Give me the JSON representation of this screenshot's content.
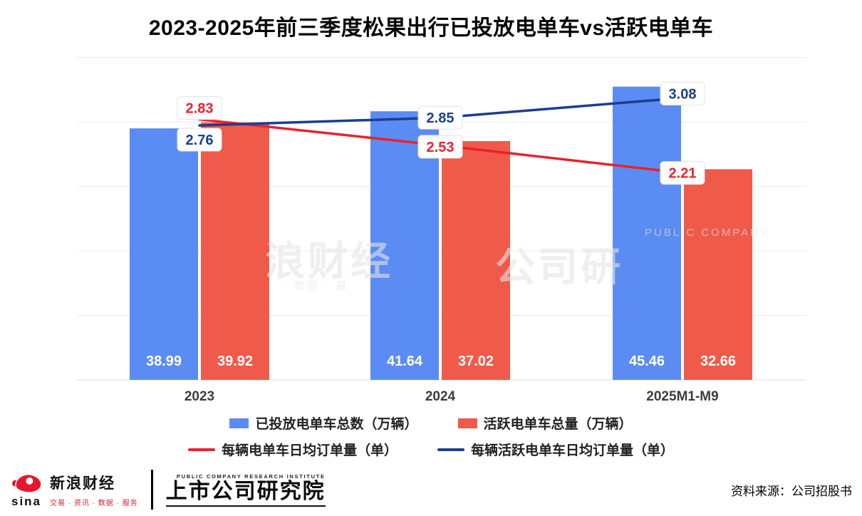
{
  "title": "2023-2025年前三季度松果出行已投放电单车vs活跃电单车",
  "chart_data": {
    "type": "bar+line",
    "categories": [
      "2023",
      "2024",
      "2025M1-M9"
    ],
    "bar_series": [
      {
        "name": "已投放电单车总数（万辆）",
        "color": "#5b8cf4",
        "values": [
          38.99,
          41.64,
          45.46
        ]
      },
      {
        "name": "活跃电单车总量（万辆）",
        "color": "#ef5a4b",
        "values": [
          39.92,
          37.02,
          32.66
        ]
      }
    ],
    "line_series": [
      {
        "name": "每辆电单车日均订单量（单）",
        "color": "#e8232d",
        "values": [
          2.83,
          2.53,
          2.21
        ]
      },
      {
        "name": "每辆活跃电单车日均订单量（单）",
        "color": "#1d3d8f",
        "values": [
          2.76,
          2.85,
          3.08
        ]
      }
    ],
    "bar_axis": {
      "min": 0,
      "max": 50
    },
    "grid": true,
    "legend_position": "bottom"
  },
  "watermark": {
    "left_text": "浪财经",
    "left_sub": "· 数据 · 最",
    "right_text": "公司研",
    "right_sub": "PUBLIC COMPANY"
  },
  "footer": {
    "sina_word": "sina",
    "brand_name": "新浪财经",
    "brand_tagline": "交易 · 资讯 · 数据 · 服务",
    "institute_en": "PUBLIC COMPANY RESEARCH INSTITUTE",
    "institute_name": "上市公司研究院",
    "source": "资料来源：公司招股书"
  }
}
